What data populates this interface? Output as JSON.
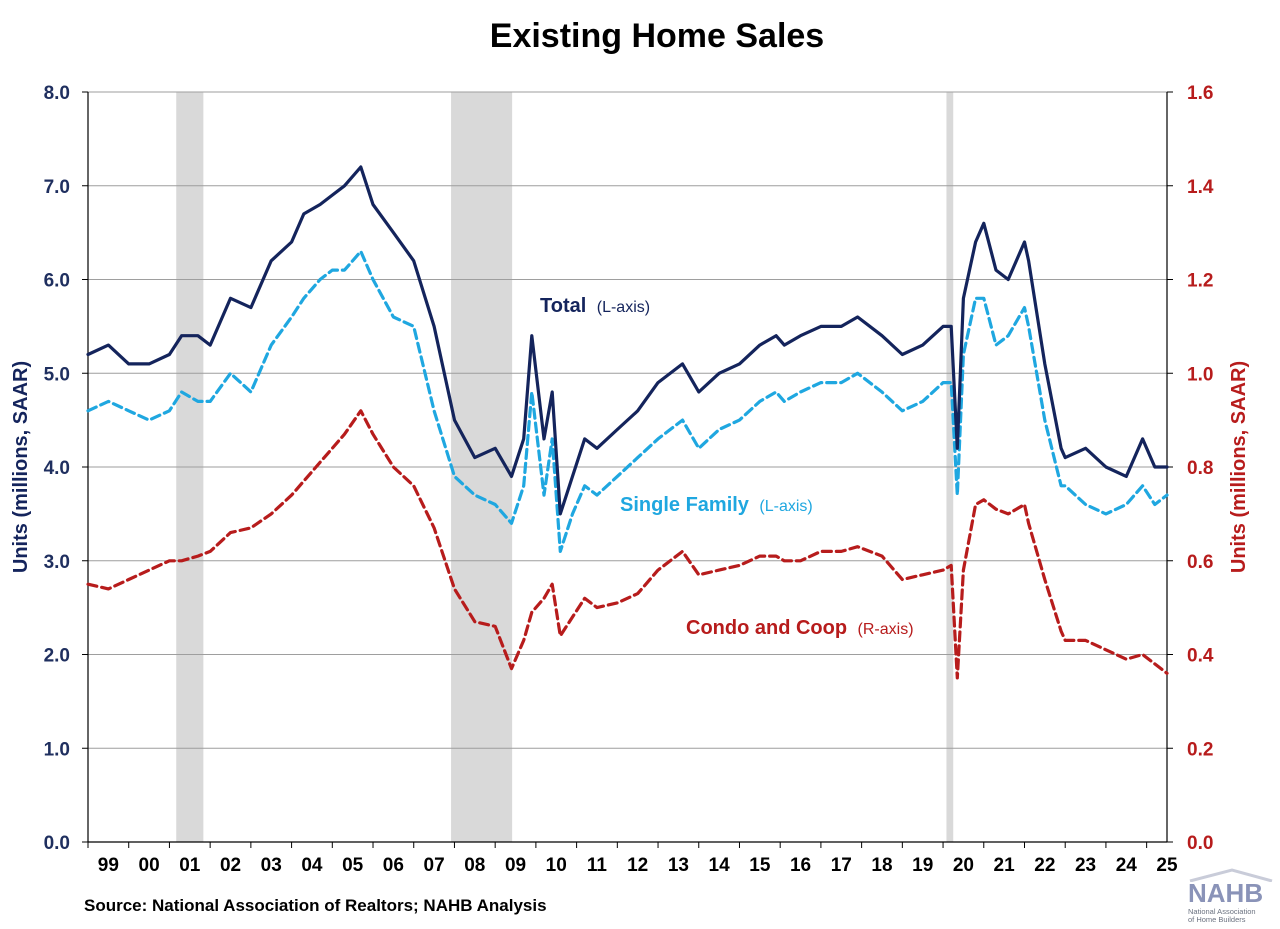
{
  "chart_data": {
    "type": "line",
    "title": "Existing Home Sales",
    "ylabel_left": "Units (millions, SAAR)",
    "ylabel_right": "Units (millions, SAAR)",
    "ylim_left": [
      0,
      8
    ],
    "ylim_right": [
      0,
      1.6
    ],
    "yticks_left": [
      "0.0",
      "1.0",
      "2.0",
      "3.0",
      "4.0",
      "5.0",
      "6.0",
      "7.0",
      "8.0"
    ],
    "yticks_right": [
      "0.0",
      "0.2",
      "0.4",
      "0.6",
      "0.8",
      "1.0",
      "1.2",
      "1.4",
      "1.6"
    ],
    "x_ticks": [
      "99",
      "00",
      "01",
      "02",
      "03",
      "04",
      "05",
      "06",
      "07",
      "08",
      "09",
      "10",
      "11",
      "12",
      "13",
      "14",
      "15",
      "16",
      "17",
      "18",
      "19",
      "20",
      "21",
      "22",
      "23",
      "24",
      "25"
    ],
    "x_range": [
      "1999-01",
      "2025-07"
    ],
    "grid": true,
    "recessions": [
      {
        "start": "2001-03",
        "end": "2001-11"
      },
      {
        "start": "2007-12",
        "end": "2009-06"
      },
      {
        "start": "2020-02",
        "end": "2020-04"
      }
    ],
    "series": [
      {
        "name": "Total",
        "axis_note": "(L-axis)",
        "axis": "left",
        "style": "solid",
        "color": "#14245c",
        "x": [
          1999.0,
          1999.5,
          2000.0,
          2000.5,
          2001.0,
          2001.3,
          2001.7,
          2002.0,
          2002.5,
          2003.0,
          2003.5,
          2004.0,
          2004.3,
          2004.7,
          2005.0,
          2005.3,
          2005.7,
          2006.0,
          2006.5,
          2007.0,
          2007.5,
          2008.0,
          2008.5,
          2009.0,
          2009.4,
          2009.7,
          2009.9,
          2010.2,
          2010.4,
          2010.6,
          2010.9,
          2011.2,
          2011.5,
          2012.0,
          2012.5,
          2013.0,
          2013.6,
          2014.0,
          2014.5,
          2015.0,
          2015.5,
          2015.9,
          2016.1,
          2016.5,
          2017.0,
          2017.5,
          2017.9,
          2018.5,
          2019.0,
          2019.5,
          2020.0,
          2020.2,
          2020.35,
          2020.5,
          2020.8,
          2021.0,
          2021.3,
          2021.6,
          2022.0,
          2022.1,
          2022.5,
          2022.9,
          2023.0,
          2023.5,
          2024.0,
          2024.5,
          2024.9,
          2025.2,
          2025.5
        ],
        "values": [
          5.2,
          5.3,
          5.1,
          5.1,
          5.2,
          5.4,
          5.4,
          5.3,
          5.8,
          5.7,
          6.2,
          6.4,
          6.7,
          6.8,
          6.9,
          7.0,
          7.2,
          6.8,
          6.5,
          6.2,
          5.5,
          4.5,
          4.1,
          4.2,
          3.9,
          4.3,
          5.4,
          4.3,
          4.8,
          3.5,
          3.9,
          4.3,
          4.2,
          4.4,
          4.6,
          4.9,
          5.1,
          4.8,
          5.0,
          5.1,
          5.3,
          5.4,
          5.3,
          5.4,
          5.5,
          5.5,
          5.6,
          5.4,
          5.2,
          5.3,
          5.5,
          5.5,
          4.2,
          5.8,
          6.4,
          6.6,
          6.1,
          6.0,
          6.4,
          6.2,
          5.1,
          4.2,
          4.1,
          4.2,
          4.0,
          3.9,
          4.3,
          4.0,
          4.0
        ]
      },
      {
        "name": "Single Family",
        "axis_note": "(L-axis)",
        "axis": "left",
        "style": "dashed",
        "color": "#1fa7e0",
        "x": [
          1999.0,
          1999.5,
          2000.0,
          2000.5,
          2001.0,
          2001.3,
          2001.7,
          2002.0,
          2002.5,
          2003.0,
          2003.5,
          2004.0,
          2004.3,
          2004.7,
          2005.0,
          2005.3,
          2005.7,
          2006.0,
          2006.5,
          2007.0,
          2007.5,
          2008.0,
          2008.5,
          2009.0,
          2009.4,
          2009.7,
          2009.9,
          2010.2,
          2010.4,
          2010.6,
          2010.9,
          2011.2,
          2011.5,
          2012.0,
          2012.5,
          2013.0,
          2013.6,
          2014.0,
          2014.5,
          2015.0,
          2015.5,
          2015.9,
          2016.1,
          2016.5,
          2017.0,
          2017.5,
          2017.9,
          2018.5,
          2019.0,
          2019.5,
          2020.0,
          2020.2,
          2020.35,
          2020.5,
          2020.8,
          2021.0,
          2021.3,
          2021.6,
          2022.0,
          2022.1,
          2022.5,
          2022.9,
          2023.0,
          2023.5,
          2024.0,
          2024.5,
          2024.9,
          2025.2,
          2025.5
        ],
        "values": [
          4.6,
          4.7,
          4.6,
          4.5,
          4.6,
          4.8,
          4.7,
          4.7,
          5.0,
          4.8,
          5.3,
          5.6,
          5.8,
          6.0,
          6.1,
          6.1,
          6.3,
          6.0,
          5.6,
          5.5,
          4.6,
          3.9,
          3.7,
          3.6,
          3.4,
          3.8,
          4.8,
          3.7,
          4.3,
          3.1,
          3.5,
          3.8,
          3.7,
          3.9,
          4.1,
          4.3,
          4.5,
          4.2,
          4.4,
          4.5,
          4.7,
          4.8,
          4.7,
          4.8,
          4.9,
          4.9,
          5.0,
          4.8,
          4.6,
          4.7,
          4.9,
          4.9,
          3.7,
          5.2,
          5.8,
          5.8,
          5.3,
          5.4,
          5.7,
          5.5,
          4.5,
          3.8,
          3.8,
          3.6,
          3.5,
          3.6,
          3.8,
          3.6,
          3.7
        ]
      },
      {
        "name": "Condo and Coop",
        "axis_note": "(R-axis)",
        "axis": "right",
        "style": "dashed",
        "color": "#b71c1c",
        "x": [
          1999.0,
          1999.5,
          2000.0,
          2000.5,
          2001.0,
          2001.3,
          2001.7,
          2002.0,
          2002.5,
          2003.0,
          2003.5,
          2004.0,
          2004.3,
          2004.7,
          2005.0,
          2005.3,
          2005.7,
          2006.0,
          2006.5,
          2007.0,
          2007.5,
          2008.0,
          2008.5,
          2009.0,
          2009.4,
          2009.7,
          2009.9,
          2010.2,
          2010.4,
          2010.6,
          2010.9,
          2011.2,
          2011.5,
          2012.0,
          2012.5,
          2013.0,
          2013.6,
          2014.0,
          2014.5,
          2015.0,
          2015.5,
          2015.9,
          2016.1,
          2016.5,
          2017.0,
          2017.5,
          2017.9,
          2018.5,
          2019.0,
          2019.5,
          2020.0,
          2020.2,
          2020.35,
          2020.5,
          2020.8,
          2021.0,
          2021.3,
          2021.6,
          2022.0,
          2022.1,
          2022.5,
          2022.9,
          2023.0,
          2023.5,
          2024.0,
          2024.5,
          2024.9,
          2025.2,
          2025.5
        ],
        "values": [
          0.55,
          0.54,
          0.56,
          0.58,
          0.6,
          0.6,
          0.61,
          0.62,
          0.66,
          0.67,
          0.7,
          0.74,
          0.77,
          0.81,
          0.84,
          0.87,
          0.92,
          0.87,
          0.8,
          0.76,
          0.67,
          0.54,
          0.47,
          0.46,
          0.37,
          0.43,
          0.49,
          0.52,
          0.55,
          0.44,
          0.48,
          0.52,
          0.5,
          0.51,
          0.53,
          0.58,
          0.62,
          0.57,
          0.58,
          0.59,
          0.61,
          0.61,
          0.6,
          0.6,
          0.62,
          0.62,
          0.63,
          0.61,
          0.56,
          0.57,
          0.58,
          0.59,
          0.35,
          0.58,
          0.72,
          0.73,
          0.71,
          0.7,
          0.72,
          0.68,
          0.56,
          0.45,
          0.43,
          0.43,
          0.41,
          0.39,
          0.4,
          0.38,
          0.36
        ]
      }
    ]
  },
  "source": "Source: National Association of Realtors; NAHB Analysis",
  "logo": {
    "word": "NAHB",
    "line1": "National Association",
    "line2": "of Home Builders"
  },
  "colors": {
    "total": "#14245c",
    "single_family": "#1fa7e0",
    "condo": "#b71c1c",
    "recession_band": "#d9d9d9",
    "grid": "#9e9e9e"
  }
}
